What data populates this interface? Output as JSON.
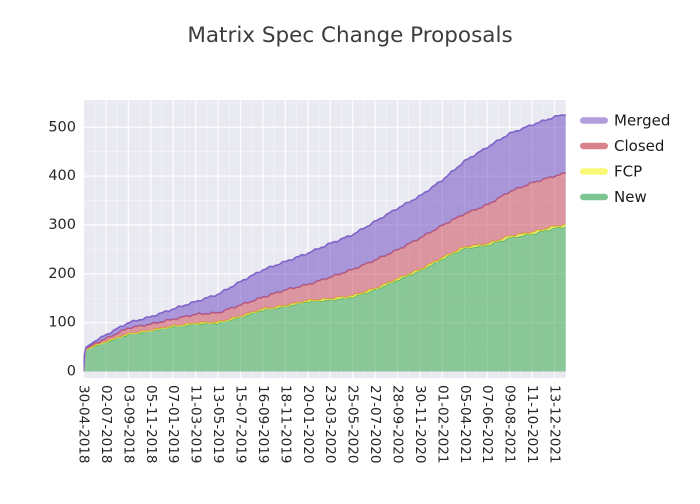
{
  "chart_data": {
    "type": "area",
    "title": "Matrix Spec Change Proposals",
    "stacked": true,
    "stack_order_bottom_to_top": [
      "New",
      "FCP",
      "Closed",
      "Merged"
    ],
    "legend_position": "right-outside-top",
    "grid": "major-and-minor-white-on-gray-panel",
    "panel_background": "#e9e9f2",
    "ylim": [
      0,
      556
    ],
    "y_ticks": [
      "0",
      "100",
      "200",
      "300",
      "400",
      "500"
    ],
    "y_tick_values": [
      0,
      100,
      200,
      300,
      400,
      500
    ],
    "y_minor_step": 50,
    "x_tick_labels": [
      "30-04-2018",
      "02-07-2018",
      "03-09-2018",
      "05-11-2018",
      "07-01-2019",
      "11-03-2019",
      "13-05-2019",
      "15-07-2019",
      "16-09-2019",
      "18-11-2019",
      "20-01-2020",
      "23-03-2020",
      "25-05-2020",
      "27-07-2020",
      "28-09-2020",
      "30-11-2020",
      "01-02-2021",
      "05-04-2021",
      "07-06-2021",
      "09-08-2021",
      "11-10-2021",
      "13-12-2021"
    ],
    "x": [
      0,
      0.07,
      0.5,
      1,
      2,
      3,
      4,
      5,
      6,
      7,
      8,
      9,
      10,
      11,
      12,
      13,
      14,
      15,
      16,
      17,
      18,
      19,
      20,
      21,
      21.5
    ],
    "series": [
      {
        "name": "New",
        "line": "#3aa94f",
        "fill": "rgba(58,169,79,0.55)",
        "legend_color": "#7cc490",
        "values": [
          0,
          44,
          52,
          60,
          76,
          83,
          92,
          97,
          99,
          111,
          126,
          133,
          143,
          146,
          152,
          167,
          187,
          206,
          230,
          252,
          258,
          273,
          281,
          293,
          296
        ]
      },
      {
        "name": "FCP",
        "line": "#e0e032",
        "fill": "rgba(230,230,60,0.60)",
        "legend_color": "#f9f877",
        "values": [
          0,
          0,
          1,
          1,
          1,
          1,
          1,
          2,
          2,
          2,
          2,
          2,
          2,
          3,
          3,
          3,
          3,
          3,
          3,
          3,
          3,
          4,
          4,
          4,
          4
        ]
      },
      {
        "name": "Closed",
        "line": "#cb5e6d",
        "fill": "rgba(205,80,95,0.55)",
        "legend_color": "#d9828c",
        "values": [
          0,
          2,
          4,
          6,
          12,
          13,
          14,
          18,
          19,
          23,
          24,
          32,
          33,
          44,
          54,
          58,
          59,
          64,
          66,
          68,
          80,
          91,
          101,
          103,
          106
        ]
      },
      {
        "name": "Merged",
        "line": "#7f63c9",
        "fill": "rgba(114,82,196,0.55)",
        "legend_color": "#b29ddb",
        "values": [
          0,
          2,
          5,
          8,
          11,
          15,
          21,
          26,
          38,
          48,
          56,
          58,
          64,
          69,
          71,
          79,
          85,
          86,
          93,
          108,
          118,
          119,
          119,
          121,
          121
        ]
      }
    ],
    "legend": [
      {
        "label": "Merged",
        "color": "#b29ddb"
      },
      {
        "label": "Closed",
        "color": "#d9828c"
      },
      {
        "label": "FCP",
        "color": "#f9f877"
      },
      {
        "label": "New",
        "color": "#7cc490"
      }
    ]
  }
}
